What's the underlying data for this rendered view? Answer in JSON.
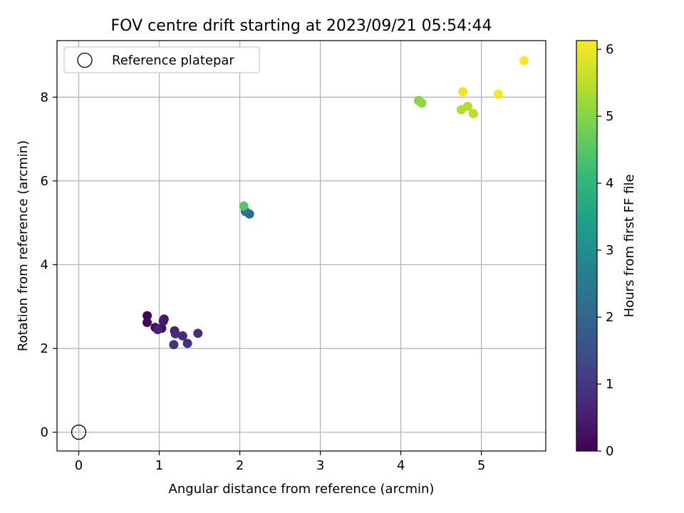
{
  "chart_data": {
    "type": "scatter",
    "title": "FOV centre drift starting at 2023/09/21 05:54:44",
    "xlabel": "Angular distance from reference (arcmin)",
    "ylabel": "Rotation from reference (arcmin)",
    "xlim": [
      -0.27,
      5.8
    ],
    "ylim": [
      -0.45,
      9.35
    ],
    "xticks": [
      0,
      1,
      2,
      3,
      4,
      5
    ],
    "yticks": [
      0,
      2,
      4,
      6,
      8
    ],
    "grid": true,
    "legend": {
      "position": "top-left",
      "entries": [
        "Reference platepar"
      ]
    },
    "reference_point": {
      "x": 0,
      "y": 0,
      "marker": "open-circle"
    },
    "colorbar": {
      "label": "Hours from first FF file",
      "range": [
        0,
        6.13
      ],
      "ticks": [
        0,
        1,
        2,
        3,
        4,
        5,
        6
      ],
      "colormap": "viridis"
    },
    "points": [
      {
        "x": 0.85,
        "y": 2.78,
        "h": 0.02
      },
      {
        "x": 0.85,
        "y": 2.62,
        "h": 0.05
      },
      {
        "x": 0.95,
        "y": 2.5,
        "h": 0.15
      },
      {
        "x": 1.03,
        "y": 2.48,
        "h": 0.25
      },
      {
        "x": 1.06,
        "y": 2.7,
        "h": 0.35
      },
      {
        "x": 1.05,
        "y": 2.65,
        "h": 0.45
      },
      {
        "x": 0.98,
        "y": 2.45,
        "h": 0.55
      },
      {
        "x": 1.19,
        "y": 2.42,
        "h": 0.6
      },
      {
        "x": 1.2,
        "y": 2.35,
        "h": 0.68
      },
      {
        "x": 1.29,
        "y": 2.3,
        "h": 0.75
      },
      {
        "x": 1.48,
        "y": 2.36,
        "h": 0.8
      },
      {
        "x": 1.35,
        "y": 2.12,
        "h": 0.85
      },
      {
        "x": 1.18,
        "y": 2.09,
        "h": 0.95
      },
      {
        "x": 2.12,
        "y": 5.21,
        "h": 2.1
      },
      {
        "x": 2.07,
        "y": 5.27,
        "h": 2.3
      },
      {
        "x": 2.05,
        "y": 5.4,
        "h": 4.5
      },
      {
        "x": 4.22,
        "y": 7.92,
        "h": 5.0
      },
      {
        "x": 4.26,
        "y": 7.86,
        "h": 5.1
      },
      {
        "x": 4.75,
        "y": 7.7,
        "h": 5.4
      },
      {
        "x": 4.83,
        "y": 7.78,
        "h": 5.45
      },
      {
        "x": 4.9,
        "y": 7.61,
        "h": 5.5
      },
      {
        "x": 4.77,
        "y": 8.13,
        "h": 6.0
      },
      {
        "x": 5.21,
        "y": 8.07,
        "h": 6.05
      },
      {
        "x": 5.53,
        "y": 8.87,
        "h": 6.13
      }
    ]
  }
}
